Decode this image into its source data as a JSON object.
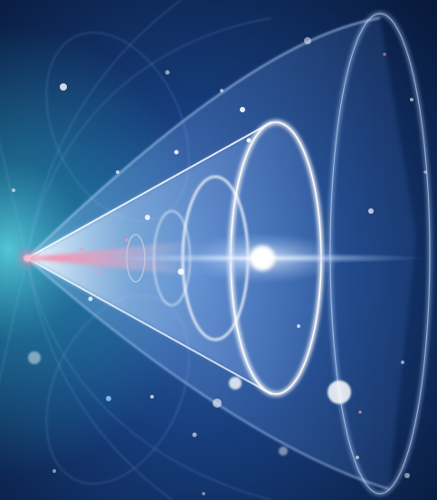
{
  "image": {
    "palette": {
      "background_deep": "#0a1c40",
      "background_mid": "#1a4a8a",
      "glow_left_teal": "#2fb6c4",
      "cone_blue": "#6fa8ff",
      "cone_white": "#ffffff",
      "vertex_pink": "#ff5a8a",
      "flare_white": "#ffffff"
    },
    "elements": [
      "outer-funnel",
      "inner-cone",
      "nested-rings",
      "vertex-point",
      "light-flare",
      "particles"
    ]
  }
}
